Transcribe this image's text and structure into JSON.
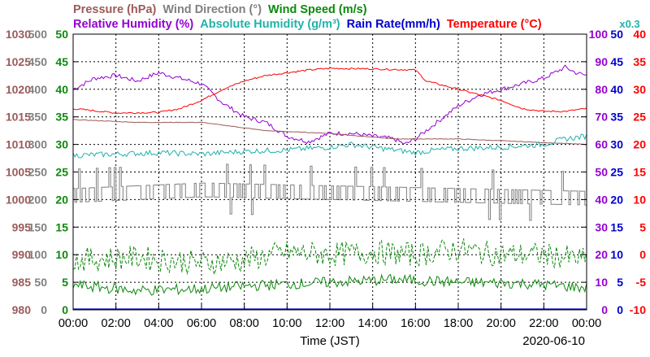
{
  "chart_data": {
    "type": "line",
    "legend_row1": [
      {
        "text": "Pressure (hPa)",
        "color": "#9c5a5a"
      },
      {
        "text": "Wind Direction (°)",
        "color": "#808080"
      },
      {
        "text": "Wind Speed (m/s)",
        "color": "#0b8a0b"
      }
    ],
    "legend_row2": [
      {
        "text": "Relative Humidity (%)",
        "color": "#9400d3"
      },
      {
        "text": "Absolute Humidity (g/m³)",
        "color": "#20b2aa"
      },
      {
        "text": "Rain Rate(mm/h)",
        "color": "#0000cd"
      },
      {
        "text": "Temperature (°C)",
        "color": "#ff0000"
      }
    ],
    "factor_label": {
      "text": "x0.3",
      "color": "#20b2aa"
    },
    "xlabel": "Time (JST)",
    "date_label": "2020-06-10",
    "x_ticks": [
      "00:00",
      "02:00",
      "04:00",
      "06:00",
      "08:00",
      "10:00",
      "12:00",
      "14:00",
      "16:00",
      "18:00",
      "20:00",
      "22:00",
      "00:00"
    ],
    "xlim_hours": [
      0,
      24
    ],
    "grid": true,
    "axes": {
      "pressure": {
        "color": "#9c5a5a",
        "ticks": [
          "1030",
          "1025",
          "1020",
          "1015",
          "1010",
          "1005",
          "1000",
          "995",
          "990",
          "985",
          "980"
        ],
        "range": [
          980,
          1030
        ]
      },
      "wind_direction": {
        "color": "#808080",
        "ticks": [
          "500",
          "450",
          "400",
          "350",
          "300",
          "250",
          "200",
          "150",
          "100",
          "50",
          "0"
        ],
        "range": [
          0,
          500
        ]
      },
      "wind_speed": {
        "color": "#0b8a0b",
        "ticks": [
          "50",
          "45",
          "40",
          "35",
          "30",
          "25",
          "20",
          "15",
          "10",
          "5",
          "0"
        ],
        "range": [
          0,
          50
        ]
      },
      "relative_humidity": {
        "color": "#9400d3",
        "ticks": [
          "100",
          "90",
          "80",
          "70",
          "60",
          "50",
          "40",
          "30",
          "20",
          "10",
          "0"
        ],
        "range": [
          0,
          100
        ]
      },
      "rain_rate": {
        "color": "#0000cd",
        "ticks": [
          "50",
          "45",
          "40",
          "35",
          "30",
          "25",
          "20",
          "15",
          "10",
          "5",
          "0"
        ],
        "range": [
          0,
          50
        ]
      },
      "temperature": {
        "color": "#ff0000",
        "ticks": [
          "40",
          "35",
          "30",
          "25",
          "20",
          "15",
          "10",
          "5",
          "0",
          "-5",
          "-10"
        ],
        "range": [
          -10,
          40
        ]
      }
    },
    "series": [
      {
        "name": "Relative Humidity (%)",
        "axis": "relative_humidity",
        "color": "#9400d3",
        "points": [
          [
            0,
            80
          ],
          [
            1,
            84
          ],
          [
            2,
            85
          ],
          [
            3,
            83
          ],
          [
            4,
            86
          ],
          [
            5,
            84
          ],
          [
            6,
            82
          ],
          [
            7,
            75
          ],
          [
            8,
            70
          ],
          [
            9,
            68
          ],
          [
            10,
            63
          ],
          [
            11,
            61
          ],
          [
            12,
            64
          ],
          [
            13,
            64
          ],
          [
            14,
            63
          ],
          [
            15,
            62
          ],
          [
            15.5,
            60
          ],
          [
            16,
            62
          ],
          [
            17,
            68
          ],
          [
            18,
            74
          ],
          [
            19,
            78
          ],
          [
            20,
            80
          ],
          [
            21,
            82
          ],
          [
            22,
            84
          ],
          [
            23,
            88
          ],
          [
            23.5,
            86
          ],
          [
            24,
            85
          ]
        ]
      },
      {
        "name": "Temperature (°C)",
        "axis": "temperature",
        "color": "#ff0000",
        "points": [
          [
            0,
            26.5
          ],
          [
            2,
            25.7
          ],
          [
            4,
            25.8
          ],
          [
            5,
            26.5
          ],
          [
            6,
            28
          ],
          [
            7,
            30
          ],
          [
            8,
            31.5
          ],
          [
            9,
            32.5
          ],
          [
            10,
            33
          ],
          [
            11,
            33.5
          ],
          [
            12,
            33.8
          ],
          [
            14,
            33.7
          ],
          [
            15,
            33.6
          ],
          [
            16,
            33.5
          ],
          [
            16.5,
            31.5
          ],
          [
            17,
            31
          ],
          [
            18,
            30
          ],
          [
            19,
            29
          ],
          [
            20,
            28
          ],
          [
            21,
            26.5
          ],
          [
            22,
            26
          ],
          [
            23,
            26
          ],
          [
            24,
            26.5
          ]
        ]
      },
      {
        "name": "Pressure (hPa)",
        "axis": "pressure",
        "color": "#9c5a5a",
        "points": [
          [
            0,
            1014.5
          ],
          [
            3,
            1014
          ],
          [
            6,
            1014
          ],
          [
            9,
            1012.5
          ],
          [
            12,
            1012
          ],
          [
            15,
            1011
          ],
          [
            18,
            1011
          ],
          [
            21,
            1010.5
          ],
          [
            24,
            1010
          ]
        ]
      },
      {
        "name": "Absolute Humidity (g/m³)",
        "axis": "relative_humidity",
        "color": "#20b2aa",
        "points": [
          [
            0,
            56
          ],
          [
            2,
            56.5
          ],
          [
            4,
            57
          ],
          [
            6,
            56.5
          ],
          [
            8,
            57.5
          ],
          [
            10,
            58
          ],
          [
            12,
            59
          ],
          [
            13,
            60
          ],
          [
            14,
            59
          ],
          [
            15,
            58
          ],
          [
            16,
            57
          ],
          [
            17,
            58
          ],
          [
            18,
            58.5
          ],
          [
            20,
            59
          ],
          [
            22,
            60
          ],
          [
            23,
            62
          ],
          [
            24,
            63
          ]
        ]
      },
      {
        "name": "Wind Direction (°)",
        "axis": "wind_direction",
        "color": "#808080",
        "style": "step",
        "points": [
          [
            0,
            205
          ],
          [
            6,
            215
          ],
          [
            12,
            210
          ],
          [
            18,
            205
          ],
          [
            24,
            200
          ]
        ]
      },
      {
        "name": "Wind Speed (m/s) max",
        "axis": "wind_speed",
        "color": "#0b8a0b",
        "dash": true,
        "points": [
          [
            0,
            9
          ],
          [
            3,
            9.5
          ],
          [
            6,
            8.5
          ],
          [
            8,
            9
          ],
          [
            10,
            10.5
          ],
          [
            12,
            10
          ],
          [
            14,
            10.5
          ],
          [
            16,
            10
          ],
          [
            18,
            11
          ],
          [
            20,
            10
          ],
          [
            22,
            10
          ],
          [
            24,
            9
          ]
        ]
      },
      {
        "name": "Wind Speed (m/s) avg",
        "axis": "wind_speed",
        "color": "#0b8a0b",
        "points": [
          [
            0,
            4.5
          ],
          [
            3,
            3.5
          ],
          [
            6,
            3.8
          ],
          [
            9,
            4.5
          ],
          [
            12,
            5
          ],
          [
            15,
            5.5
          ],
          [
            18,
            5
          ],
          [
            21,
            4.8
          ],
          [
            24,
            4
          ]
        ]
      }
    ]
  }
}
